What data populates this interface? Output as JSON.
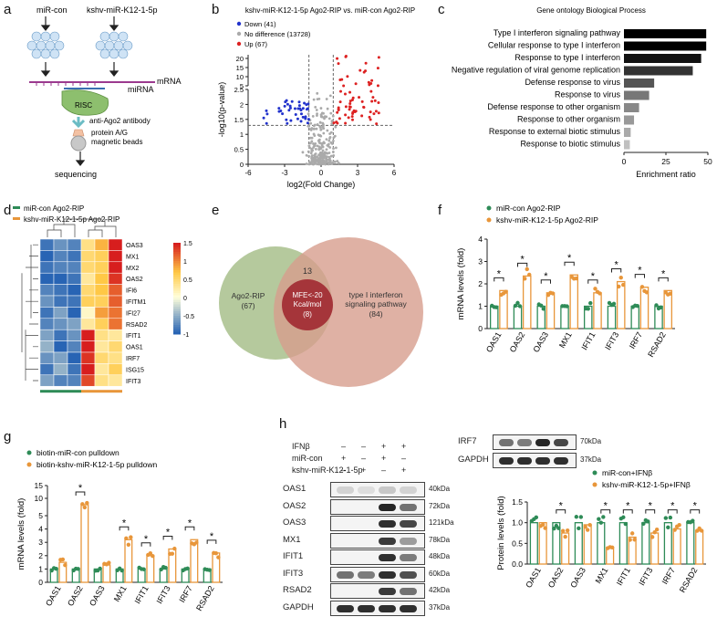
{
  "panels": {
    "a": "a",
    "b": "b",
    "c": "c",
    "d": "d",
    "e": "e",
    "f": "f",
    "g": "g",
    "h": "h"
  },
  "a": {
    "left_label": "miR-con",
    "right_label": "kshv-miR-K12-1-5p",
    "mrna": "mRNA",
    "mirna": "miRNA",
    "risc": "RISC",
    "antibody": "anti-Ago2 antibody",
    "beads": [
      "protein A/G",
      "magnetic beads"
    ],
    "sequencing": "sequencing"
  },
  "colors": {
    "green": "#2e8b57",
    "orange": "#e8963a",
    "down": "#2233cc",
    "up": "#dd2222",
    "nodiff": "#aaaaaa"
  },
  "chart_data": [
    {
      "id": "b",
      "type": "scatter",
      "title": "kshv-miR-K12-1-5p Ago2-RIP vs. miR-con Ago2-RIP",
      "legend": [
        "Down (41)",
        "No difference (13728)",
        "Up (67)"
      ],
      "xlabel": "log2(Fold Change)",
      "ylabel": "-log10(p-value)",
      "xticks": [
        "-6",
        "-3",
        "0",
        "3",
        "6"
      ],
      "yticks": [
        "0",
        "0.5",
        "1",
        "1.5",
        "2",
        "2.5",
        "5",
        "10",
        "15",
        "20"
      ],
      "xlim": [
        -6,
        6
      ]
    },
    {
      "id": "c",
      "type": "bar",
      "orientation": "horizontal",
      "title": "Gene ontology Biological Process",
      "categories": [
        "Type I interferon signaling pathway",
        "Cellular response to type I interferon",
        "Response to type I interferon",
        "Negative regulation of viral genome replication",
        "Defense response to virus",
        "Response to virus",
        "Defense response to other organism",
        "Response to other organism",
        "Response to external biotic stimulus",
        "Response to biotic stimulus"
      ],
      "values": [
        49,
        49,
        46,
        41,
        18,
        15,
        9,
        6,
        4,
        3.5
      ],
      "xlabel": "Enrichment ratio",
      "xticks": [
        "0",
        "25",
        "50"
      ],
      "xlim": [
        0,
        50
      ]
    },
    {
      "id": "d",
      "type": "heatmap",
      "legend": [
        "miR-con Ago2-RIP",
        "kshv-miR-K12-1-5p Ago2-RIP"
      ],
      "rows": [
        "OAS3",
        "MX1",
        "MX2",
        "OAS2",
        "IFI6",
        "IFITM1",
        "IFI27",
        "RSAD2",
        "IFIT1",
        "OAS1",
        "IRF7",
        "ISG15",
        "IFIT3"
      ],
      "colorbar": [
        "1.5",
        "1",
        "0.5",
        "0",
        "-0.5",
        "-1"
      ],
      "values": [
        [
          -0.9,
          -0.7,
          -0.8,
          0.4,
          0.8,
          1.5
        ],
        [
          -1.0,
          -0.8,
          -0.9,
          0.5,
          0.6,
          1.6
        ],
        [
          -0.9,
          -0.8,
          -0.8,
          0.5,
          0.6,
          1.5
        ],
        [
          -1.0,
          -1.1,
          -0.9,
          0.3,
          0.7,
          1.4
        ],
        [
          -0.8,
          -0.9,
          -1.0,
          0.5,
          0.7,
          1.2
        ],
        [
          -0.7,
          -0.9,
          -0.9,
          0.6,
          0.6,
          1.2
        ],
        [
          -0.9,
          -0.6,
          -1.0,
          0.1,
          0.9,
          1.1
        ],
        [
          -0.8,
          -0.7,
          -0.6,
          0.3,
          0.6,
          1.1
        ],
        [
          -0.6,
          -0.9,
          -0.7,
          1.5,
          0.4,
          0.3
        ],
        [
          -0.5,
          -1.0,
          -0.8,
          1.6,
          0.3,
          0.5
        ],
        [
          -0.7,
          -0.6,
          -1.1,
          1.4,
          0.5,
          0.4
        ],
        [
          -0.9,
          -0.5,
          -0.9,
          1.5,
          0.3,
          0.6
        ],
        [
          -0.6,
          -0.8,
          -0.8,
          1.3,
          0.4,
          0.3
        ]
      ]
    },
    {
      "id": "f",
      "type": "bar",
      "legend": [
        "miR-con Ago2-RIP",
        "kshv-miR-K12-1-5p Ago2-RIP"
      ],
      "categories": [
        "OAS1",
        "OAS2",
        "OAS3",
        "MX1",
        "IFIT1",
        "IFIT3",
        "IRF7",
        "RSAD2"
      ],
      "series": [
        {
          "name": "miR-con Ago2-RIP",
          "values": [
            1,
            1,
            1,
            1,
            1,
            1,
            1,
            1
          ]
        },
        {
          "name": "kshv-miR-K12-1-5p Ago2-RIP",
          "values": [
            1.7,
            2.35,
            1.6,
            2.4,
            1.6,
            2.1,
            1.85,
            1.7
          ]
        }
      ],
      "ylabel": "mRNA levels (fold)",
      "yticks": [
        "0",
        "1",
        "2",
        "3",
        "4"
      ],
      "ylim": [
        0,
        4
      ],
      "sig": [
        "*",
        "*",
        "*",
        "*",
        "*",
        "*",
        "*",
        "*"
      ]
    },
    {
      "id": "g",
      "type": "bar",
      "legend": [
        "biotin-miR-con pulldown",
        "biotin-kshv-miR-K12-1-5p pulldown"
      ],
      "categories": [
        "OAS1",
        "OAS2",
        "OAS3",
        "MX1",
        "IFIT1",
        "IFIT3",
        "IRF7",
        "RSAD2"
      ],
      "series": [
        {
          "name": "biotin-miR-con pulldown",
          "values": [
            1,
            1,
            1,
            1,
            1,
            1,
            1,
            1
          ]
        },
        {
          "name": "biotin-kshv-miR-K12-1-5p pulldown",
          "values": [
            1.5,
            7.5,
            1.3,
            3.2,
            2.0,
            2.5,
            3.2,
            2.2
          ]
        }
      ],
      "ylabel": "mRNA levels (fold)",
      "yticks": [
        "0",
        "1",
        "2",
        "3",
        "4",
        "5",
        "10",
        "15"
      ],
      "sig": [
        "",
        "*",
        "",
        "*",
        "*",
        "*",
        "*",
        "*"
      ]
    },
    {
      "id": "h",
      "type": "bar",
      "legend": [
        "miR-con+IFNβ",
        "kshv-miR-K12-1-5p+IFNβ"
      ],
      "categories": [
        "OAS1",
        "OAS2",
        "OAS3",
        "MX1",
        "IFIT1",
        "IFIT3",
        "IRF7",
        "RSAD2"
      ],
      "series": [
        {
          "name": "miR-con+IFNβ",
          "values": [
            1,
            1,
            1,
            1,
            1,
            1,
            1,
            1
          ]
        },
        {
          "name": "kshv-miR-K12-1-5p+IFNβ",
          "values": [
            1.0,
            0.75,
            0.95,
            0.4,
            0.65,
            0.75,
            0.85,
            0.8
          ]
        }
      ],
      "ylabel": "Protein levels (fold)",
      "yticks": [
        "0.0",
        "0.5",
        "1.0",
        "1.5"
      ],
      "ylim": [
        0,
        1.5
      ],
      "sig": [
        "",
        "*",
        "",
        "*",
        "*",
        "*",
        "*",
        "*"
      ]
    }
  ],
  "e": {
    "left": [
      "Ago2-RIP",
      "(67)"
    ],
    "right": [
      "type I interferon",
      "signaling pathway",
      "(84)"
    ],
    "overlap": "13",
    "inner": [
      "MFE<-20",
      "Kcal/mol",
      "(8)"
    ]
  },
  "h_blot": {
    "conditions": [
      {
        "label": "IFNβ",
        "marks": [
          "–",
          "–",
          "+",
          "+"
        ]
      },
      {
        "label": "miR-con",
        "marks": [
          "+",
          "–",
          "+",
          "–"
        ]
      },
      {
        "label": "kshv-miR-K12-1-5p",
        "marks": [
          "–",
          "+",
          "–",
          "+"
        ]
      }
    ],
    "rows": [
      {
        "name": "OAS1",
        "kda": "40kDa",
        "bands": [
          0.15,
          0.1,
          0.2,
          0.15
        ]
      },
      {
        "name": "OAS2",
        "kda": "72kDa",
        "bands": [
          0,
          0,
          0.95,
          0.6
        ]
      },
      {
        "name": "OAS3",
        "kda": "121kDa",
        "bands": [
          0,
          0,
          0.9,
          0.8
        ]
      },
      {
        "name": "MX1",
        "kda": "78kDa",
        "bands": [
          0,
          0,
          0.85,
          0.4
        ]
      },
      {
        "name": "IFIT1",
        "kda": "48kDa",
        "bands": [
          0,
          0,
          0.9,
          0.55
        ]
      },
      {
        "name": "IFIT3",
        "kda": "60kDa",
        "bands": [
          0.6,
          0.55,
          0.9,
          0.75
        ]
      },
      {
        "name": "RSAD2",
        "kda": "42kDa",
        "bands": [
          0,
          0,
          0.85,
          0.6
        ]
      },
      {
        "name": "GAPDH",
        "kda": "37kDa",
        "bands": [
          0.9,
          0.9,
          0.9,
          0.9
        ]
      }
    ],
    "right_rows": [
      {
        "name": "IRF7",
        "kda": "70kDa",
        "bands": [
          0.6,
          0.55,
          0.95,
          0.8
        ]
      },
      {
        "name": "GAPDH",
        "kda": "37kDa",
        "bands": [
          0.9,
          0.9,
          0.9,
          0.9
        ]
      }
    ]
  }
}
